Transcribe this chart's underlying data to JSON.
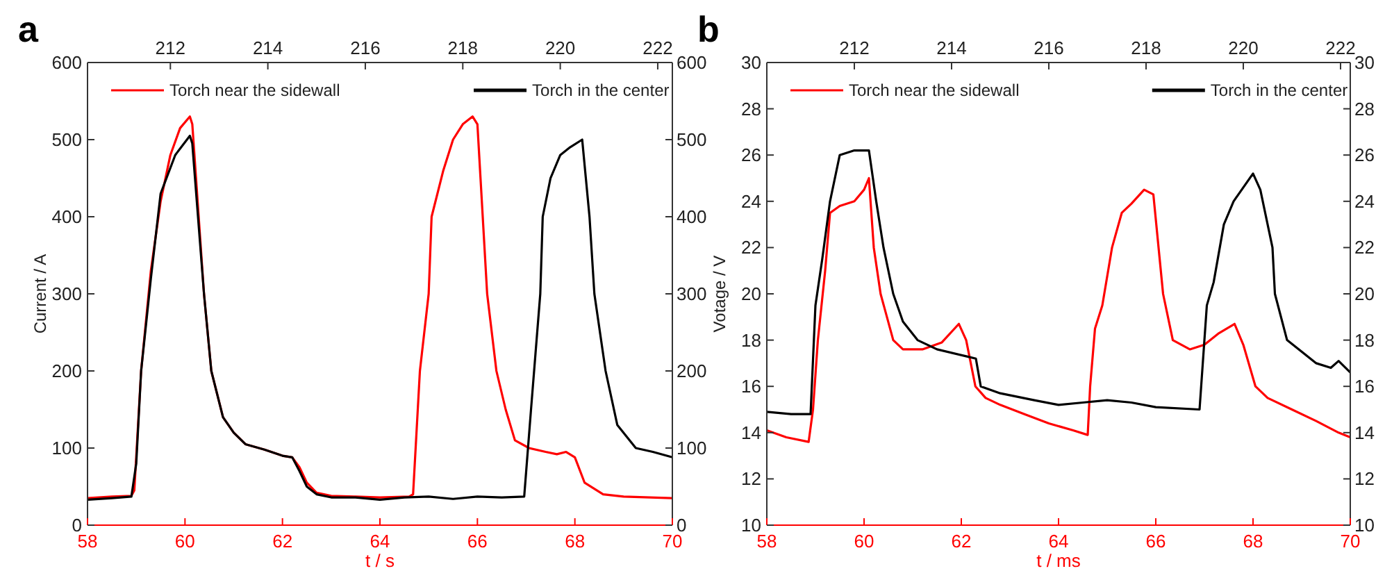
{
  "chart_data": [
    {
      "type": "line",
      "title": "a",
      "xlabel": "t / s",
      "ylabel": "Current / A",
      "xlim": [
        58,
        70
      ],
      "xticks": [
        58,
        60,
        62,
        64,
        66,
        68,
        70
      ],
      "x2lim": [
        210.3,
        222.3
      ],
      "x2ticks": [
        212,
        214,
        216,
        218,
        220,
        222
      ],
      "ylim": [
        0,
        600
      ],
      "yticks": [
        0,
        100,
        200,
        300,
        400,
        500,
        600
      ],
      "y2lim": [
        0,
        600
      ],
      "y2ticks": [
        0,
        100,
        200,
        300,
        400,
        500,
        600
      ],
      "legend": "top",
      "grid": false,
      "marker": "none",
      "line_style": "solid",
      "series": [
        {
          "name": "Torch near the sidewall",
          "color": "#ff0000",
          "x": [
            58,
            58.5,
            58.9,
            58.96,
            59.1,
            59.3,
            59.5,
            59.7,
            59.9,
            60.1,
            60.15,
            60.39,
            60.54,
            60.78,
            61.0,
            61.24,
            61.63,
            62.0,
            62.2,
            62.35,
            62.5,
            62.7,
            63.0,
            63.5,
            64.0,
            64.6,
            64.68,
            64.82,
            65.0,
            65.06,
            65.3,
            65.5,
            65.7,
            65.9,
            66.0,
            66.2,
            66.39,
            66.58,
            66.77,
            67.06,
            67.4,
            67.63,
            67.82,
            68.0,
            68.2,
            68.58,
            69.0,
            70
          ],
          "values": [
            35,
            37,
            38,
            45,
            200,
            330,
            420,
            480,
            515,
            530,
            520,
            300,
            200,
            140,
            120,
            105,
            98,
            90,
            88,
            75,
            55,
            42,
            38,
            37,
            36,
            37,
            40,
            200,
            300,
            400,
            460,
            500,
            520,
            530,
            520,
            300,
            200,
            150,
            110,
            100,
            95,
            92,
            95,
            88,
            55,
            40,
            37,
            35
          ]
        },
        {
          "name": "Torch in the center",
          "color": "#000000",
          "x": [
            58,
            58.5,
            58.9,
            59.0,
            59.1,
            59.3,
            59.5,
            59.8,
            60.1,
            60.15,
            60.39,
            60.54,
            60.78,
            61.0,
            61.24,
            61.63,
            62.0,
            62.2,
            62.35,
            62.5,
            62.7,
            63.0,
            63.5,
            64.0,
            64.5,
            65.0,
            65.5,
            66.0,
            66.5,
            66.96,
            67.1,
            67.29,
            67.34,
            67.5,
            67.7,
            67.9,
            68.15,
            68.3,
            68.4,
            68.63,
            68.87,
            69.25,
            69.6,
            70
          ],
          "values": [
            33,
            35,
            37,
            80,
            200,
            320,
            430,
            480,
            505,
            495,
            300,
            200,
            140,
            120,
            105,
            98,
            90,
            88,
            70,
            50,
            40,
            36,
            36,
            33,
            36,
            37,
            34,
            37,
            36,
            37,
            150,
            300,
            400,
            450,
            480,
            490,
            500,
            400,
            300,
            200,
            130,
            100,
            95,
            88
          ]
        }
      ]
    },
    {
      "type": "line",
      "title": "b",
      "xlabel": "t / ms",
      "ylabel": "Votage / V",
      "xlim": [
        58,
        70
      ],
      "xticks": [
        58,
        60,
        62,
        64,
        66,
        68,
        70
      ],
      "x2lim": [
        210.2,
        222.2
      ],
      "x2ticks": [
        212,
        214,
        216,
        218,
        220,
        222
      ],
      "ylim": [
        10,
        30
      ],
      "yticks": [
        10,
        12,
        14,
        16,
        18,
        20,
        22,
        24,
        26,
        28,
        30
      ],
      "y2lim": [
        10,
        30
      ],
      "y2ticks": [
        10,
        12,
        14,
        16,
        18,
        20,
        22,
        24,
        26,
        28,
        30
      ],
      "legend": "top",
      "grid": false,
      "marker": "none",
      "line_style": "solid",
      "series": [
        {
          "name": "Torch near the sidewall",
          "color": "#ff0000",
          "x": [
            58,
            58.4,
            58.86,
            58.95,
            59.05,
            59.2,
            59.3,
            59.5,
            59.8,
            60.0,
            60.1,
            60.2,
            60.34,
            60.6,
            60.8,
            61.2,
            61.6,
            61.95,
            62.1,
            62.29,
            62.5,
            62.8,
            63.3,
            63.8,
            64.3,
            64.6,
            64.65,
            64.75,
            64.9,
            65.1,
            65.3,
            65.5,
            65.76,
            65.95,
            66.15,
            66.35,
            66.7,
            67.0,
            67.3,
            67.62,
            67.8,
            68.05,
            68.3,
            68.8,
            69.3,
            69.76,
            70
          ],
          "values": [
            14.1,
            13.8,
            13.6,
            15,
            18,
            21,
            23.5,
            23.8,
            24,
            24.5,
            25,
            22,
            20,
            18,
            17.6,
            17.6,
            17.9,
            18.7,
            18,
            16,
            15.5,
            15.2,
            14.8,
            14.4,
            14.1,
            13.9,
            16,
            18.5,
            19.5,
            22,
            23.5,
            23.9,
            24.5,
            24.3,
            20,
            18,
            17.6,
            17.8,
            18.3,
            18.7,
            17.8,
            16,
            15.5,
            15,
            14.5,
            14,
            13.8
          ]
        },
        {
          "name": "Torch in the center",
          "color": "#000000",
          "x": [
            58,
            58.5,
            58.9,
            59.0,
            59.14,
            59.3,
            59.5,
            59.8,
            60.1,
            60.25,
            60.4,
            60.6,
            60.8,
            61.1,
            61.5,
            62.1,
            62.3,
            62.4,
            62.8,
            63.5,
            64.0,
            64.5,
            65.0,
            65.5,
            66.0,
            66.9,
            67.05,
            67.19,
            67.4,
            67.6,
            68.0,
            68.15,
            68.4,
            68.45,
            68.7,
            69.3,
            69.6,
            69.76,
            70
          ],
          "values": [
            14.9,
            14.8,
            14.8,
            19.5,
            21.5,
            24,
            26,
            26.2,
            26.2,
            24,
            22,
            20,
            18.8,
            18,
            17.6,
            17.3,
            17.2,
            16,
            15.7,
            15.4,
            15.2,
            15.3,
            15.4,
            15.3,
            15.1,
            15.0,
            19.5,
            20.5,
            23,
            24,
            25.2,
            24.5,
            22,
            20,
            18,
            17,
            16.8,
            17.1,
            16.6
          ]
        }
      ]
    }
  ]
}
